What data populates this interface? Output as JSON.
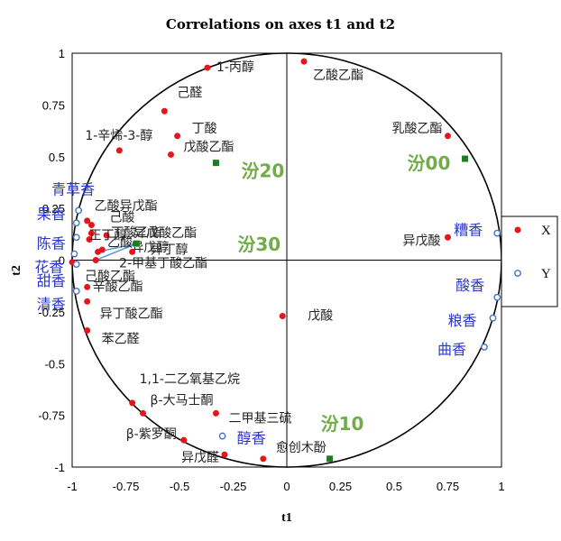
{
  "chart_data": {
    "type": "scatter",
    "title": "Correlations on axes t1 and t2",
    "xlabel": "t1",
    "ylabel": "t2",
    "xlim": [
      -1,
      1
    ],
    "ylim": [
      -1,
      1
    ],
    "xticks": [
      "-1",
      "-0.75",
      "-0.5",
      "-0.25",
      "0",
      "0.25",
      "0.5",
      "0.75",
      "1"
    ],
    "yticks": [
      "-1",
      "-0.75",
      "-0.5",
      "-0.25",
      "0",
      "0.25",
      "0.5",
      "0.75",
      "1"
    ],
    "grid": false,
    "legend_position": "right",
    "colors": {
      "X": "#e8141c",
      "Y": "#4472c4",
      "observations": "#1e7d1e",
      "obs_label": "#70ad47",
      "arrow": "#5b9bd5"
    },
    "series": [
      {
        "name": "X",
        "points": [
          {
            "label": "1-丙醇",
            "x": -0.37,
            "y": 0.93
          },
          {
            "label": "乙酸乙酯",
            "x": 0.08,
            "y": 0.96
          },
          {
            "label": "己醛",
            "x": -0.57,
            "y": 0.72
          },
          {
            "label": "丁酸",
            "x": -0.51,
            "y": 0.6
          },
          {
            "label": "1-辛烯-3-醇",
            "x": -0.78,
            "y": 0.53
          },
          {
            "label": "戊酸乙酯",
            "x": -0.54,
            "y": 0.51
          },
          {
            "label": "乳酸乙酯",
            "x": 0.75,
            "y": 0.6
          },
          {
            "label": "乙酸异戊酯",
            "x": -0.93,
            "y": 0.19
          },
          {
            "label": "己酸",
            "x": -0.91,
            "y": 0.17
          },
          {
            "label": "丁酸乙酯",
            "x": -0.91,
            "y": 0.13
          },
          {
            "label": "异戊酸乙酯",
            "x": -0.84,
            "y": 0.12
          },
          {
            "label": "乙酸",
            "x": -0.92,
            "y": 0.1
          },
          {
            "label": "异戊醇",
            "x": -0.86,
            "y": 0.05
          },
          {
            "label": "正丁醇",
            "x": -0.88,
            "y": 0.04
          },
          {
            "label": "异丁醇",
            "x": -0.72,
            "y": 0.04
          },
          {
            "label": "2-甲基丁酸乙酯",
            "x": -0.89,
            "y": 0.0
          },
          {
            "label": "己酸乙酯",
            "x": -1.0,
            "y": -0.01
          },
          {
            "label": "异戊酸",
            "x": 0.75,
            "y": 0.11
          },
          {
            "label": "辛酸乙酯",
            "x": -0.93,
            "y": -0.13
          },
          {
            "label": "异丁酸乙酯",
            "x": -0.93,
            "y": -0.2
          },
          {
            "label": "戊酸",
            "x": -0.02,
            "y": -0.27
          },
          {
            "label": "苯乙醛",
            "x": -0.93,
            "y": -0.34
          },
          {
            "label": "1,1-二乙氧基乙烷",
            "x": -0.72,
            "y": -0.69
          },
          {
            "label": "β-大马士酮",
            "x": -0.67,
            "y": -0.74
          },
          {
            "label": "二甲基三硫",
            "x": -0.33,
            "y": -0.74
          },
          {
            "label": "β-紫罗酮",
            "x": -0.48,
            "y": -0.87
          },
          {
            "label": "异戊醛",
            "x": -0.29,
            "y": -0.94
          },
          {
            "label": "愈创木酚",
            "x": -0.11,
            "y": -0.96
          }
        ]
      },
      {
        "name": "Y",
        "points": [
          {
            "label": "青草香",
            "x": -0.97,
            "y": 0.24
          },
          {
            "label": "果香",
            "x": -0.98,
            "y": 0.18
          },
          {
            "label": "陈香",
            "x": -0.98,
            "y": 0.11
          },
          {
            "label": "花香",
            "x": -0.99,
            "y": 0.03
          },
          {
            "label": "甜香",
            "x": -0.98,
            "y": -0.02
          },
          {
            "label": "清香",
            "x": -0.98,
            "y": -0.15
          },
          {
            "label": "糟香",
            "x": 0.98,
            "y": 0.13
          },
          {
            "label": "酸香",
            "x": 0.98,
            "y": -0.18
          },
          {
            "label": "粮香",
            "x": 0.96,
            "y": -0.28
          },
          {
            "label": "曲香",
            "x": 0.92,
            "y": -0.42
          },
          {
            "label": "醇香",
            "x": -0.3,
            "y": -0.85
          }
        ]
      }
    ],
    "observations": [
      {
        "label": "汾20",
        "x": -0.33,
        "y": 0.47
      },
      {
        "label": "汾00",
        "x": 0.83,
        "y": 0.49
      },
      {
        "label": "汾30",
        "x": -0.7,
        "y": 0.08
      },
      {
        "label": "汾10",
        "x": 0.2,
        "y": -0.96
      }
    ]
  }
}
